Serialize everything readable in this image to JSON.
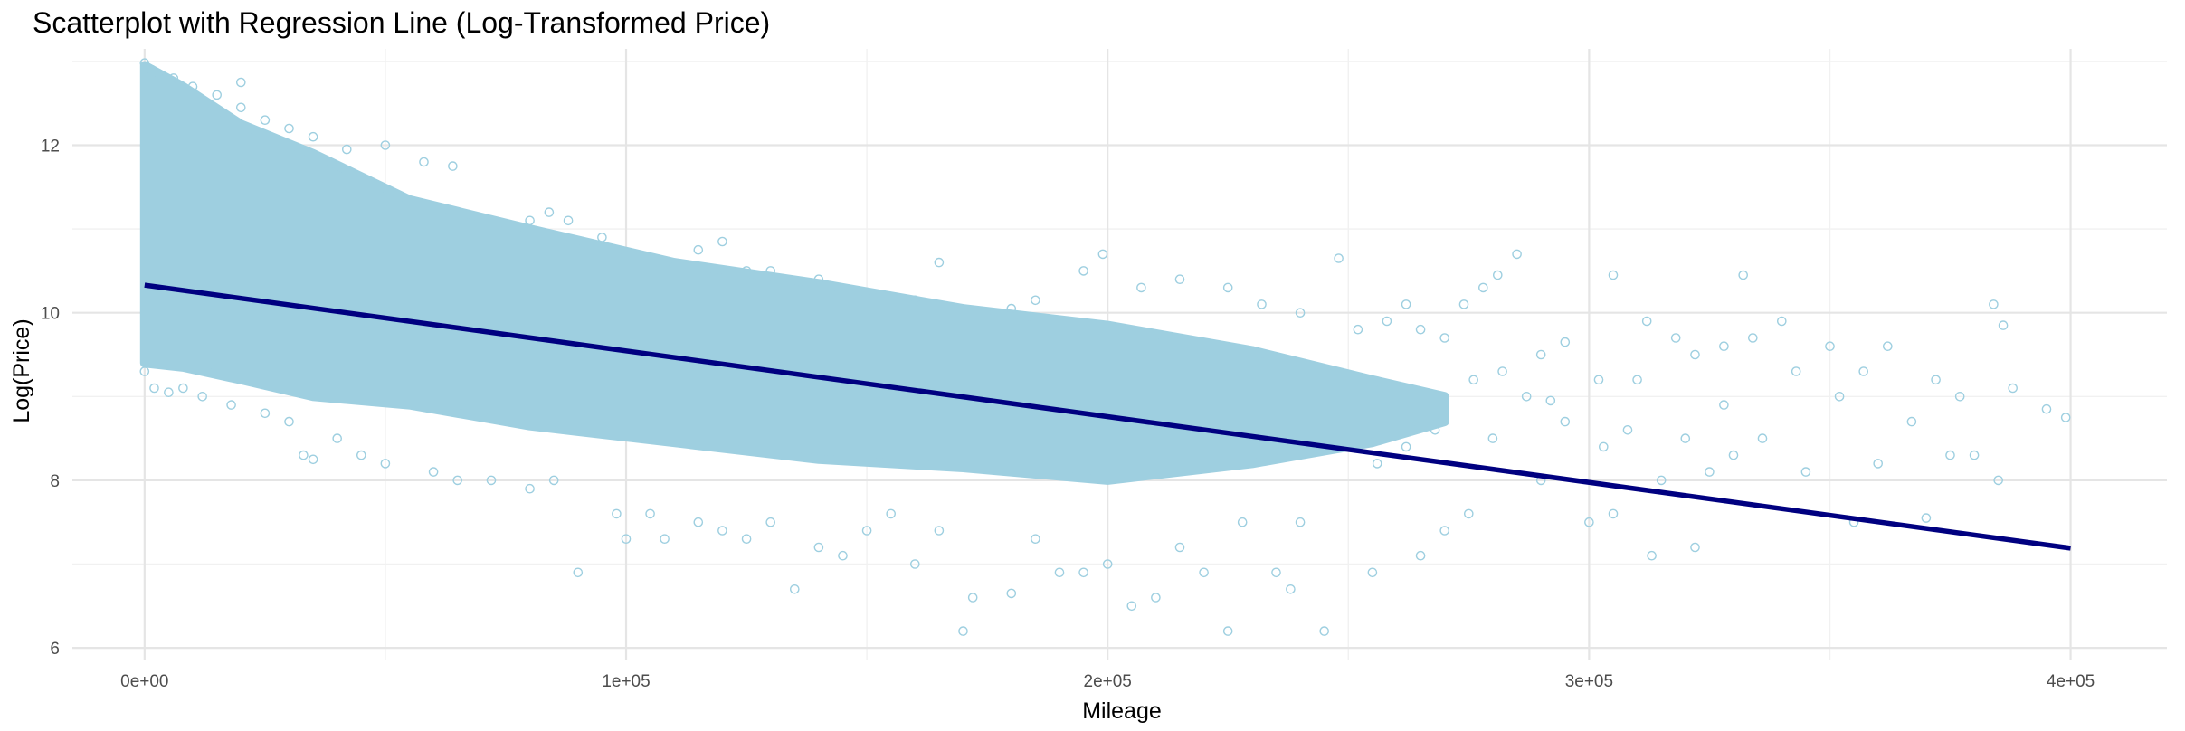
{
  "chart_data": {
    "type": "scatter",
    "title": "Scatterplot with Regression Line (Log-Transformed Price)",
    "xlabel": "Mileage",
    "ylabel": "Log(Price)",
    "xlim": [
      -15000,
      420000
    ],
    "ylim": [
      5.85,
      13.15
    ],
    "x_ticks": [
      0,
      100000,
      200000,
      300000,
      400000
    ],
    "x_tick_labels": [
      "0e+00",
      "1e+05",
      "2e+05",
      "3e+05",
      "4e+05"
    ],
    "y_ticks": [
      6,
      8,
      10,
      12
    ],
    "y_tick_labels": [
      "6",
      "8",
      "10",
      "12"
    ],
    "grid": true,
    "legend": "none",
    "point_color": "#9ecfe0",
    "line_color": "#000080",
    "regression_line": {
      "x": [
        0,
        400000
      ],
      "y": [
        10.33,
        7.19
      ]
    },
    "series": [
      {
        "kind": "points",
        "points": [
          [
            0,
            12.98
          ],
          [
            1500,
            12.9
          ],
          [
            3000,
            12.85
          ],
          [
            6000,
            12.8
          ],
          [
            10000,
            12.7
          ],
          [
            15000,
            12.6
          ],
          [
            20000,
            12.45
          ],
          [
            25000,
            12.3
          ],
          [
            30000,
            12.2
          ],
          [
            35000,
            12.1
          ],
          [
            42000,
            11.95
          ],
          [
            50000,
            12.0
          ],
          [
            58000,
            11.8
          ],
          [
            64000,
            11.75
          ],
          [
            20000,
            12.75
          ],
          [
            0,
            9.3
          ],
          [
            2000,
            9.1
          ],
          [
            5000,
            9.05
          ],
          [
            8000,
            9.1
          ],
          [
            12000,
            9.0
          ],
          [
            18000,
            8.9
          ],
          [
            25000,
            8.8
          ],
          [
            30000,
            8.7
          ],
          [
            33000,
            8.3
          ],
          [
            35000,
            8.25
          ],
          [
            40000,
            8.5
          ],
          [
            45000,
            8.3
          ],
          [
            50000,
            8.2
          ],
          [
            60000,
            8.1
          ],
          [
            65000,
            8.0
          ],
          [
            72000,
            8.0
          ],
          [
            80000,
            7.9
          ],
          [
            85000,
            8.0
          ],
          [
            90000,
            6.9
          ],
          [
            98000,
            7.6
          ],
          [
            100000,
            7.3
          ],
          [
            105000,
            7.6
          ],
          [
            108000,
            7.3
          ],
          [
            115000,
            7.5
          ],
          [
            120000,
            7.4
          ],
          [
            125000,
            7.3
          ],
          [
            130000,
            7.5
          ],
          [
            135000,
            6.7
          ],
          [
            140000,
            7.2
          ],
          [
            145000,
            7.1
          ],
          [
            150000,
            7.4
          ],
          [
            155000,
            7.6
          ],
          [
            160000,
            7.0
          ],
          [
            165000,
            7.4
          ],
          [
            170000,
            6.2
          ],
          [
            172000,
            6.6
          ],
          [
            180000,
            6.65
          ],
          [
            185000,
            7.3
          ],
          [
            190000,
            6.9
          ],
          [
            195000,
            6.9
          ],
          [
            200000,
            7.0
          ],
          [
            205000,
            6.5
          ],
          [
            210000,
            6.6
          ],
          [
            215000,
            7.2
          ],
          [
            220000,
            6.9
          ],
          [
            225000,
            6.2
          ],
          [
            228000,
            7.5
          ],
          [
            235000,
            6.9
          ],
          [
            238000,
            6.7
          ],
          [
            240000,
            7.5
          ],
          [
            245000,
            6.2
          ],
          [
            255000,
            6.9
          ],
          [
            265000,
            7.1
          ],
          [
            270000,
            7.4
          ],
          [
            275000,
            7.6
          ],
          [
            280000,
            8.5
          ],
          [
            290000,
            8.0
          ],
          [
            295000,
            8.7
          ],
          [
            300000,
            7.5
          ],
          [
            305000,
            7.6
          ],
          [
            75000,
            11.05
          ],
          [
            80000,
            11.1
          ],
          [
            84000,
            11.2
          ],
          [
            88000,
            11.1
          ],
          [
            95000,
            10.9
          ],
          [
            100000,
            10.7
          ],
          [
            105000,
            10.6
          ],
          [
            110000,
            10.55
          ],
          [
            115000,
            10.75
          ],
          [
            120000,
            10.85
          ],
          [
            125000,
            10.5
          ],
          [
            130000,
            10.5
          ],
          [
            140000,
            10.4
          ],
          [
            150000,
            10.2
          ],
          [
            160000,
            10.15
          ],
          [
            165000,
            10.6
          ],
          [
            175000,
            10.0
          ],
          [
            180000,
            10.05
          ],
          [
            185000,
            10.15
          ],
          [
            195000,
            10.5
          ],
          [
            199000,
            10.7
          ],
          [
            207000,
            10.3
          ],
          [
            215000,
            10.4
          ],
          [
            225000,
            10.3
          ],
          [
            232000,
            10.1
          ],
          [
            240000,
            10.0
          ],
          [
            248000,
            10.65
          ],
          [
            252000,
            9.8
          ],
          [
            258000,
            9.9
          ],
          [
            262000,
            10.1
          ],
          [
            265000,
            9.8
          ],
          [
            270000,
            9.7
          ],
          [
            274000,
            10.1
          ],
          [
            278000,
            10.3
          ],
          [
            281000,
            10.45
          ],
          [
            285000,
            10.7
          ],
          [
            290000,
            9.5
          ],
          [
            295000,
            9.65
          ],
          [
            302000,
            9.2
          ],
          [
            305000,
            10.45
          ],
          [
            310000,
            9.2
          ],
          [
            312000,
            9.9
          ],
          [
            318000,
            9.7
          ],
          [
            322000,
            9.5
          ],
          [
            328000,
            9.6
          ],
          [
            332000,
            10.45
          ],
          [
            334000,
            9.7
          ],
          [
            340000,
            9.9
          ],
          [
            343000,
            9.3
          ],
          [
            350000,
            9.6
          ],
          [
            352000,
            9.0
          ],
          [
            357000,
            9.3
          ],
          [
            362000,
            9.6
          ],
          [
            367000,
            8.7
          ],
          [
            372000,
            9.2
          ],
          [
            377000,
            9.0
          ],
          [
            380000,
            8.3
          ],
          [
            384000,
            10.1
          ],
          [
            386000,
            9.85
          ],
          [
            388000,
            9.1
          ],
          [
            395000,
            8.85
          ],
          [
            399000,
            8.75
          ],
          [
            303000,
            8.4
          ],
          [
            308000,
            8.6
          ],
          [
            315000,
            8.0
          ],
          [
            320000,
            8.5
          ],
          [
            325000,
            8.1
          ],
          [
            330000,
            8.3
          ],
          [
            336000,
            8.5
          ],
          [
            345000,
            8.1
          ],
          [
            355000,
            7.5
          ],
          [
            360000,
            8.2
          ],
          [
            370000,
            7.55
          ],
          [
            375000,
            8.3
          ],
          [
            385000,
            8.0
          ],
          [
            313000,
            7.1
          ],
          [
            322000,
            7.2
          ],
          [
            328000,
            8.9
          ],
          [
            292000,
            8.95
          ],
          [
            287000,
            9.0
          ],
          [
            282000,
            9.3
          ],
          [
            276000,
            9.2
          ],
          [
            268000,
            8.6
          ],
          [
            262000,
            8.4
          ],
          [
            256000,
            8.2
          ]
        ]
      }
    ]
  }
}
